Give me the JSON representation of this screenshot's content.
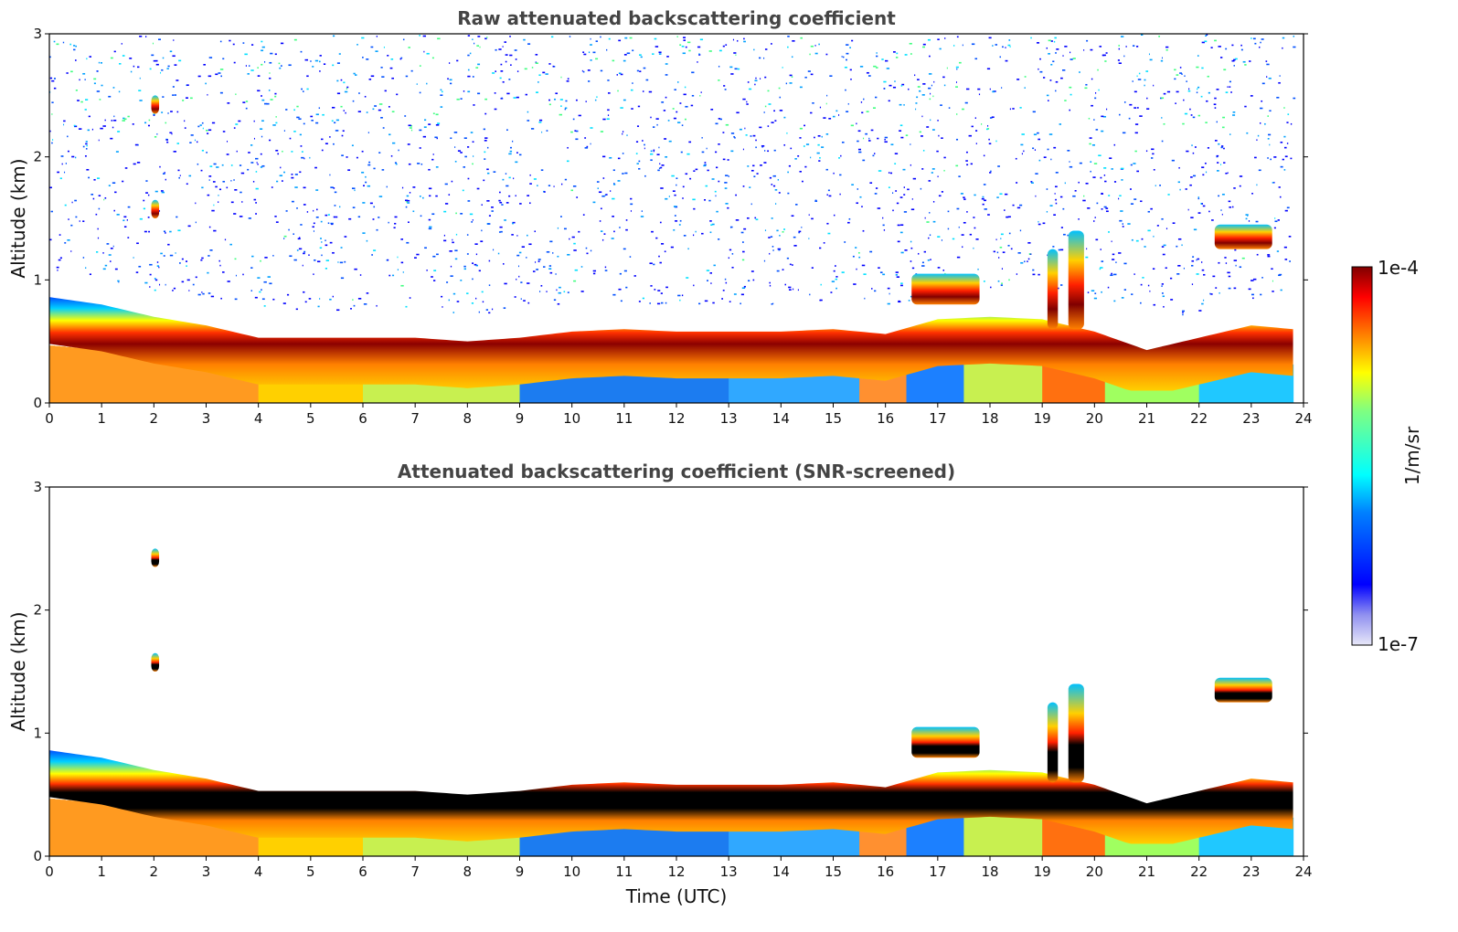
{
  "chart_data": [
    {
      "type": "heatmap",
      "title": "Raw attenuated backscattering coefficient",
      "xlabel": "",
      "ylabel": "Altitude (km)",
      "xlim": [
        0,
        24
      ],
      "ylim": [
        0,
        3
      ],
      "x_ticks": [
        "0",
        "1",
        "2",
        "3",
        "4",
        "5",
        "6",
        "7",
        "8",
        "9",
        "10",
        "11",
        "12",
        "13",
        "14",
        "15",
        "16",
        "17",
        "18",
        "19",
        "20",
        "21",
        "22",
        "23",
        "24"
      ],
      "y_ticks": [
        "0",
        "1",
        "2",
        "3"
      ],
      "color_scale": "log",
      "screened": false,
      "boundary_layer_top_km": [
        [
          0,
          0.78
        ],
        [
          1,
          0.72
        ],
        [
          2,
          0.62
        ],
        [
          3,
          0.55
        ],
        [
          4,
          0.45
        ],
        [
          5,
          0.45
        ],
        [
          6,
          0.45
        ],
        [
          7,
          0.45
        ],
        [
          8,
          0.42
        ],
        [
          9,
          0.45
        ],
        [
          10,
          0.5
        ],
        [
          11,
          0.52
        ],
        [
          12,
          0.5
        ],
        [
          13,
          0.5
        ],
        [
          14,
          0.5
        ],
        [
          15,
          0.52
        ],
        [
          16,
          0.48
        ],
        [
          17,
          0.6
        ],
        [
          18,
          0.62
        ],
        [
          19,
          0.6
        ],
        [
          20,
          0.5
        ],
        [
          21,
          0.35
        ],
        [
          22,
          0.45
        ],
        [
          23,
          0.55
        ],
        [
          23.8,
          0.52
        ]
      ],
      "cloud_features": [
        {
          "t0": 1.95,
          "t1": 2.1,
          "z0": 2.35,
          "z1": 2.5
        },
        {
          "t0": 1.95,
          "t1": 2.1,
          "z0": 1.5,
          "z1": 1.65
        },
        {
          "t0": 16.5,
          "t1": 17.8,
          "z0": 0.8,
          "z1": 1.05
        },
        {
          "t0": 19.1,
          "t1": 19.3,
          "z0": 0.6,
          "z1": 1.25
        },
        {
          "t0": 19.5,
          "t1": 19.8,
          "z0": 0.6,
          "z1": 1.4
        },
        {
          "t0": 22.3,
          "t1": 23.4,
          "z0": 1.25,
          "z1": 1.45
        }
      ]
    },
    {
      "type": "heatmap",
      "title": "Attenuated backscattering coefficient (SNR-screened)",
      "xlabel": "Time (UTC)",
      "ylabel": "Altitude (km)",
      "xlim": [
        0,
        24
      ],
      "ylim": [
        0,
        3
      ],
      "x_ticks": [
        "0",
        "1",
        "2",
        "3",
        "4",
        "5",
        "6",
        "7",
        "8",
        "9",
        "10",
        "11",
        "12",
        "13",
        "14",
        "15",
        "16",
        "17",
        "18",
        "19",
        "20",
        "21",
        "22",
        "23",
        "24"
      ],
      "y_ticks": [
        "0",
        "1",
        "2",
        "3"
      ],
      "color_scale": "log",
      "screened": true
    }
  ],
  "colorbar": {
    "label": "1/m/sr",
    "max_label": "1e-4",
    "min_label": "1e-7",
    "range": [
      1e-07,
      0.0001
    ],
    "colormap": "jet"
  }
}
